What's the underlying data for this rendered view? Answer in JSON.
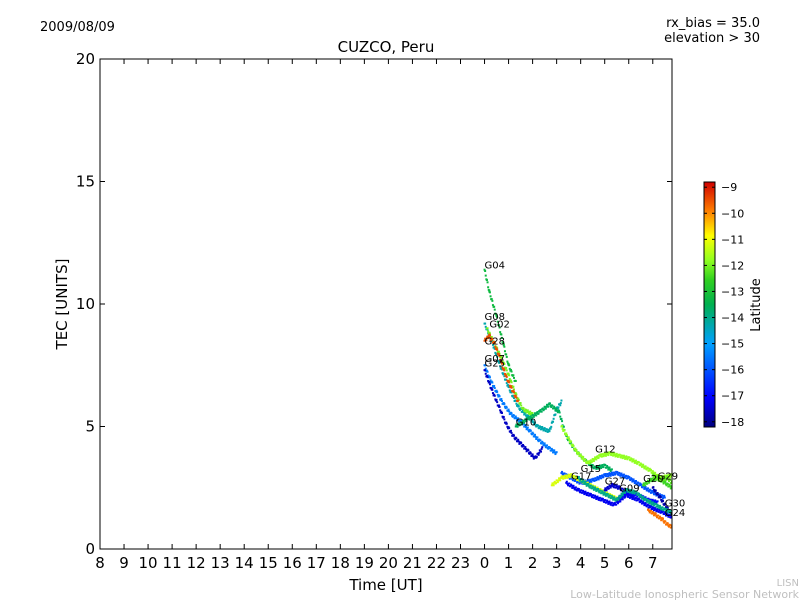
{
  "chart_data": {
    "type": "scatter",
    "title": "CUZCO, Peru",
    "date_label": "2009/08/09",
    "info_lines": [
      "rx_bias = 35.0",
      "elevation > 30"
    ],
    "xlabel": "Time [UT]",
    "ylabel": "TEC [UNITS]",
    "x_range_hours_from_8UT": [
      0,
      23.8
    ],
    "x_tick_labels": [
      "8",
      "9",
      "10",
      "11",
      "12",
      "13",
      "14",
      "15",
      "16",
      "17",
      "18",
      "19",
      "20",
      "21",
      "22",
      "23",
      "0",
      "1",
      "2",
      "3",
      "4",
      "5",
      "6",
      "7"
    ],
    "ylim": [
      0,
      20
    ],
    "y_ticks": [
      0,
      5,
      10,
      15,
      20
    ],
    "grid": false,
    "colorbar": {
      "label": "Latitude",
      "min": -18.2,
      "max": -8.8,
      "ticks": [
        -9,
        -10,
        -11,
        -12,
        -13,
        -14,
        -15,
        -16,
        -17,
        -18
      ]
    },
    "series": [
      {
        "name": "G04",
        "lat": -13.2,
        "x": [
          16.0,
          16.2,
          16.5,
          16.8,
          17.0,
          17.3
        ],
        "y": [
          11.4,
          10.5,
          9.5,
          8.3,
          7.5,
          6.8
        ]
      },
      {
        "name": "G08",
        "lat": -14.3,
        "x": [
          16.0,
          16.3,
          16.6,
          17.0,
          17.4,
          17.8,
          18.2,
          18.7,
          19.0,
          19.2
        ],
        "y": [
          9.2,
          8.5,
          7.6,
          6.6,
          5.8,
          5.4,
          5.0,
          4.8,
          5.7,
          6.0
        ]
      },
      {
        "name": "G02",
        "lat": -12.0,
        "x": [
          16.1,
          16.4,
          16.7,
          17.0,
          17.3,
          17.6,
          18.0
        ],
        "y": [
          9.0,
          8.4,
          7.8,
          7.1,
          6.3,
          5.7,
          5.5
        ]
      },
      {
        "name": "G28",
        "lat": -9.5,
        "x": [
          16.0,
          16.2,
          16.4,
          16.6,
          16.8,
          17.0,
          17.2,
          17.4
        ],
        "y": [
          8.5,
          8.7,
          8.4,
          7.9,
          7.3,
          6.8,
          6.4,
          6.0
        ]
      },
      {
        "name": "G07",
        "lat": -15.5,
        "x": [
          16.0,
          16.2,
          16.5,
          16.8,
          17.1,
          17.5,
          17.9,
          18.3,
          18.7,
          19.0
        ],
        "y": [
          7.5,
          7.0,
          6.4,
          5.9,
          5.5,
          5.2,
          4.8,
          4.4,
          4.1,
          3.9
        ]
      },
      {
        "name": "G25",
        "lat": -17.6,
        "x": [
          16.0,
          16.3,
          16.6,
          16.9,
          17.2,
          17.5,
          17.8,
          18.1,
          18.4
        ],
        "y": [
          7.3,
          6.5,
          5.8,
          5.1,
          4.6,
          4.3,
          4.0,
          3.7,
          4.1
        ]
      },
      {
        "name": "G10",
        "lat": -13.6,
        "x": [
          17.3,
          17.8,
          18.3,
          18.7,
          19.1,
          19.4,
          19.8,
          20.2,
          20.6,
          21.0,
          21.3
        ],
        "y": [
          5.0,
          5.3,
          5.6,
          5.9,
          5.6,
          4.6,
          4.0,
          3.6,
          3.3,
          3.4,
          3.2
        ]
      },
      {
        "name": "G12",
        "lat": -11.8,
        "x": [
          19.2,
          19.8,
          20.3,
          20.8,
          21.2,
          21.6,
          22.0,
          22.4,
          22.9,
          23.3,
          23.8
        ],
        "y": [
          5.0,
          4.0,
          3.5,
          3.8,
          3.9,
          3.8,
          3.7,
          3.5,
          3.2,
          2.9,
          3.0
        ]
      },
      {
        "name": "G15",
        "lat": -16.0,
        "x": [
          19.2,
          19.6,
          20.0,
          20.5,
          21.0,
          21.5,
          22.0,
          22.5,
          23.0,
          23.5
        ],
        "y": [
          3.1,
          2.9,
          2.7,
          2.8,
          3.0,
          3.1,
          2.9,
          2.6,
          2.3,
          2.1
        ]
      },
      {
        "name": "G17",
        "lat": -11.2,
        "x": [
          18.8,
          19.2,
          19.6,
          20.0,
          20.4,
          20.8,
          21.2,
          21.6
        ],
        "y": [
          2.6,
          2.9,
          3.0,
          2.8,
          2.6,
          2.4,
          2.2,
          2.0
        ]
      },
      {
        "name": "G27",
        "lat": -17.5,
        "x": [
          21.0,
          21.3,
          21.6,
          21.9,
          22.2
        ],
        "y": [
          2.4,
          2.6,
          2.5,
          2.3,
          2.2
        ]
      },
      {
        "name": "G09",
        "lat": -17.0,
        "x": [
          21.6,
          22.0,
          22.4,
          22.8,
          23.2
        ],
        "y": [
          2.1,
          2.3,
          2.2,
          2.0,
          1.9
        ]
      },
      {
        "name": "G20",
        "lat": -12.5,
        "x": [
          22.6,
          22.9,
          23.2,
          23.5,
          23.8
        ],
        "y": [
          2.6,
          2.8,
          2.9,
          2.7,
          2.5
        ]
      },
      {
        "name": "G29",
        "lat": -12.2,
        "x": [
          23.0,
          23.3,
          23.6,
          23.8
        ],
        "y": [
          3.0,
          2.8,
          2.9,
          2.7
        ]
      },
      {
        "name": "G30",
        "lat": -17.8,
        "x": [
          23.0,
          23.3,
          23.5,
          23.8
        ],
        "y": [
          2.5,
          2.1,
          1.8,
          1.4
        ]
      },
      {
        "name": "G24",
        "lat": -9.8,
        "x": [
          22.8,
          23.1,
          23.4,
          23.6,
          23.8
        ],
        "y": [
          1.6,
          1.4,
          1.2,
          1.0,
          0.9
        ]
      },
      {
        "name": "",
        "lat": -17.2,
        "x": [
          19.4,
          19.9,
          20.4,
          20.9,
          21.4,
          21.9,
          22.4,
          22.9,
          23.4,
          23.8
        ],
        "y": [
          2.7,
          2.4,
          2.2,
          2.0,
          1.8,
          2.2,
          2.0,
          1.7,
          1.5,
          1.3
        ]
      },
      {
        "name": "",
        "lat": -14.0,
        "x": [
          19.9,
          20.3,
          20.7,
          21.1,
          21.5,
          21.9,
          22.3,
          22.7,
          23.1,
          23.5,
          23.8
        ],
        "y": [
          2.9,
          2.6,
          2.4,
          2.2,
          2.0,
          2.4,
          2.3,
          2.0,
          1.8,
          1.6,
          1.5
        ]
      }
    ],
    "labels": [
      {
        "text": "G04",
        "x": 16.0,
        "y": 11.4
      },
      {
        "text": "G08",
        "x": 16.0,
        "y": 9.3
      },
      {
        "text": "G02",
        "x": 16.2,
        "y": 9.0
      },
      {
        "text": "G28",
        "x": 16.0,
        "y": 8.3
      },
      {
        "text": "G07",
        "x": 16.0,
        "y": 7.6
      },
      {
        "text": "G25",
        "x": 16.0,
        "y": 7.4
      },
      {
        "text": "G10",
        "x": 17.3,
        "y": 5.0
      },
      {
        "text": "G12",
        "x": 20.6,
        "y": 3.9
      },
      {
        "text": "G15",
        "x": 20.0,
        "y": 3.1
      },
      {
        "text": "G17",
        "x": 19.6,
        "y": 2.8
      },
      {
        "text": "G27",
        "x": 21.0,
        "y": 2.6
      },
      {
        "text": "G09",
        "x": 21.6,
        "y": 2.3
      },
      {
        "text": "G20",
        "x": 22.6,
        "y": 2.7
      },
      {
        "text": "G29",
        "x": 23.2,
        "y": 2.8
      },
      {
        "text": "G30",
        "x": 23.5,
        "y": 1.7
      },
      {
        "text": "G24",
        "x": 23.5,
        "y": 1.3
      }
    ]
  },
  "footer": {
    "brand": "LISN",
    "network_name": "Low-Latitude Ionospheric Sensor Network"
  }
}
